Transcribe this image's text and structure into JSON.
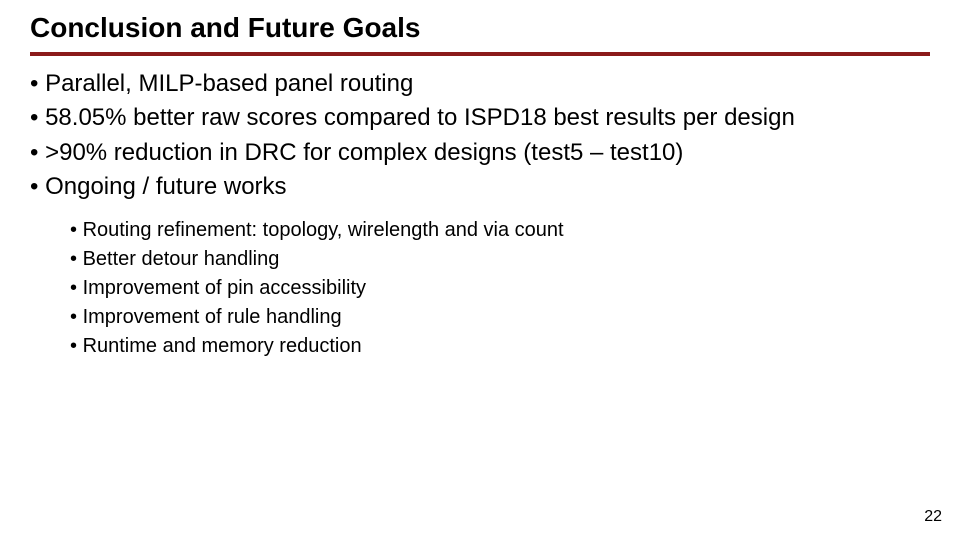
{
  "slide": {
    "title": "Conclusion and Future Goals",
    "title_fontsize": 28,
    "title_color": "#000000",
    "underline_color": "#8b1a1a",
    "background_color": "#ffffff",
    "page_number": "22",
    "main_bullets": [
      "Parallel, MILP-based panel routing",
      "58.05% better raw scores compared to ISPD18 best results per design",
      ">90% reduction in DRC for complex designs (test5 – test10)",
      "Ongoing / future works"
    ],
    "sub_bullets": [
      "Routing refinement: topology, wirelength and via count",
      "Better detour handling",
      "Improvement of pin accessibility",
      "Improvement of rule handling",
      "Runtime and memory reduction"
    ],
    "main_fontsize": 24,
    "sub_fontsize": 20,
    "text_color": "#000000"
  }
}
